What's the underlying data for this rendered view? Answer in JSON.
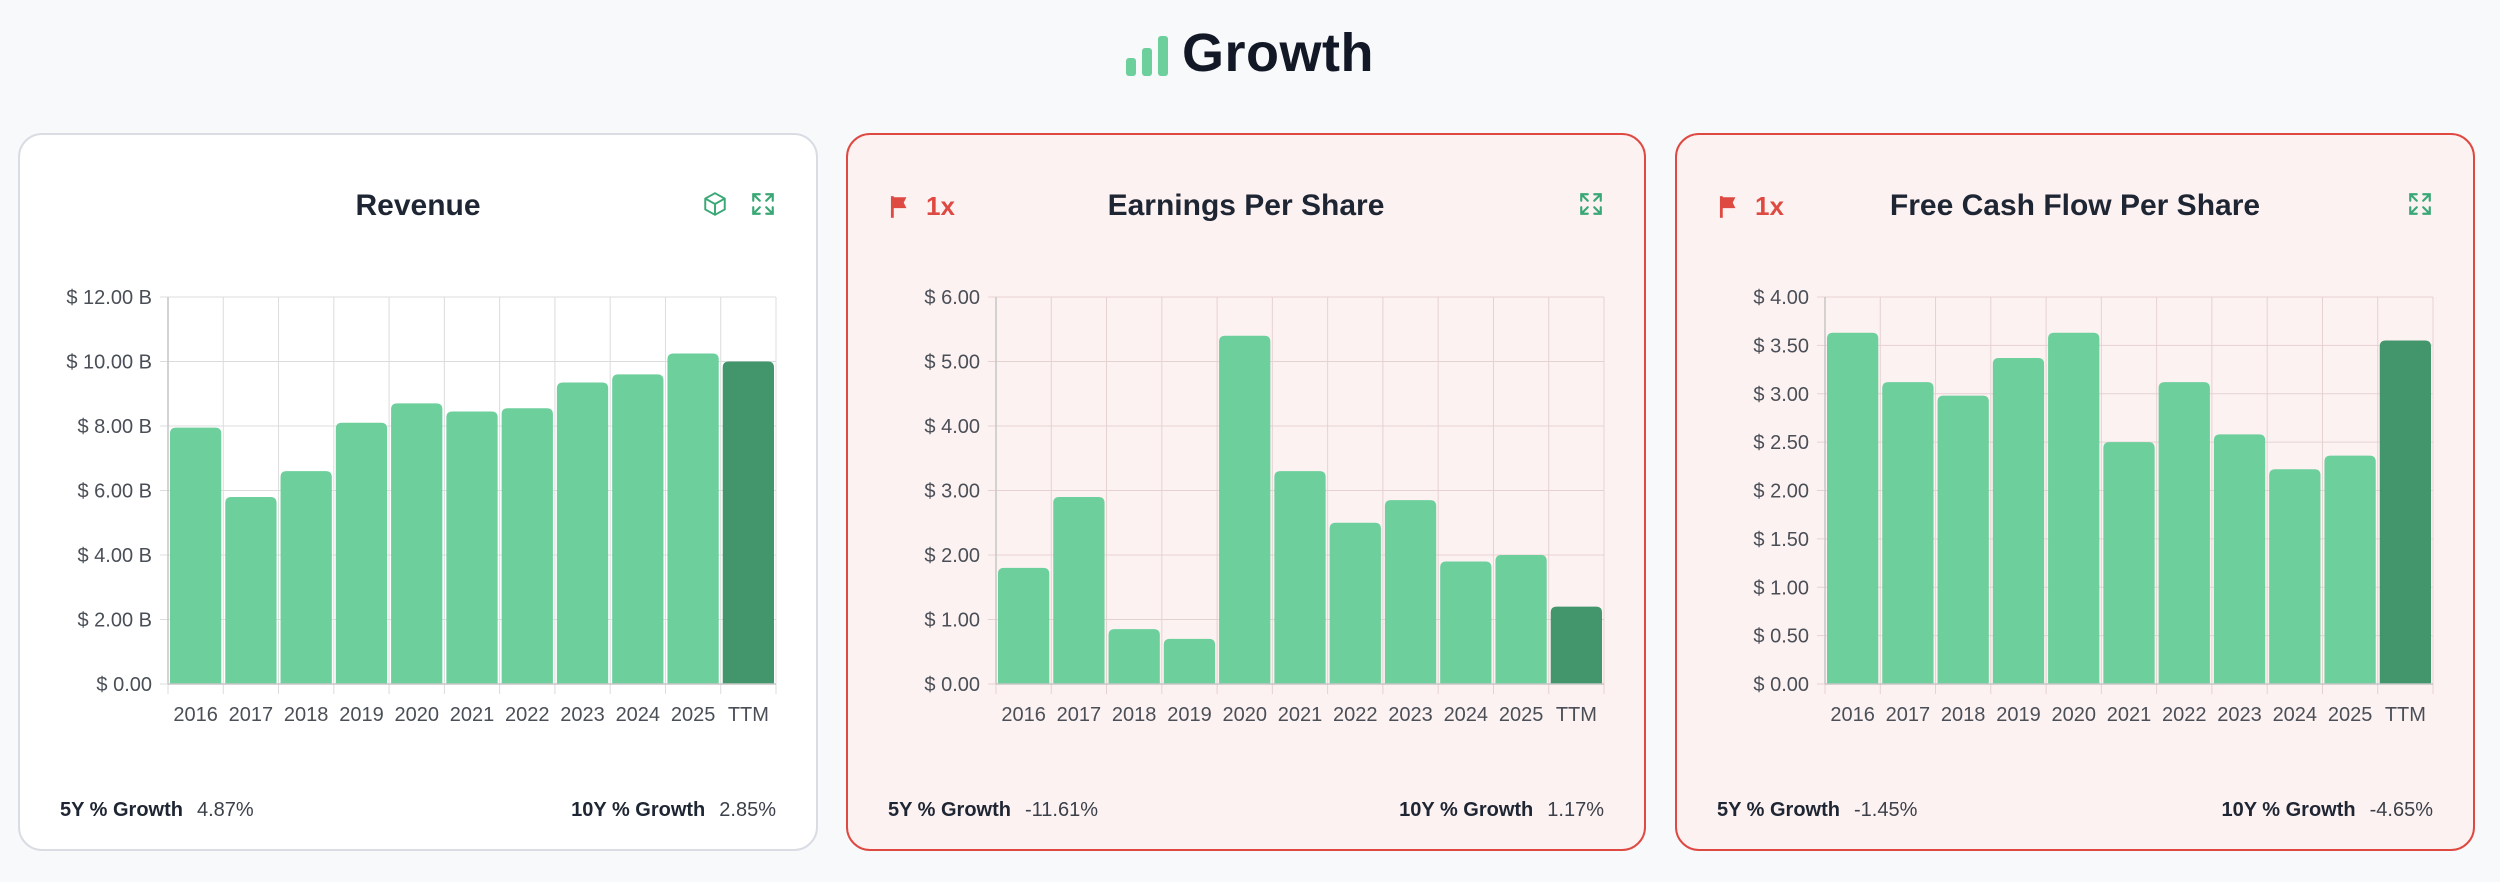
{
  "page": {
    "title": "Growth"
  },
  "colors": {
    "bar": "#6ccf9c",
    "bar_ttm": "#43956b",
    "flag": "#de4a42",
    "icon": "#3aa876"
  },
  "cards": [
    {
      "title": "Revenue",
      "flagged": false,
      "flag_count": "",
      "show_box_icon": true,
      "footer": {
        "g5_label": "5Y % Growth",
        "g5_value": "4.87%",
        "g10_label": "10Y % Growth",
        "g10_value": "2.85%"
      },
      "chart_data": {
        "type": "bar",
        "categories": [
          "2016",
          "2017",
          "2018",
          "2019",
          "2020",
          "2021",
          "2022",
          "2023",
          "2024",
          "2025",
          "TTM"
        ],
        "values": [
          7.95,
          5.8,
          6.6,
          8.1,
          8.7,
          8.45,
          8.55,
          9.35,
          9.6,
          10.25,
          10.0
        ],
        "unit": "$B",
        "ylim": [
          0,
          12
        ],
        "yticks": [
          {
            "value": 0,
            "label": "$ 0.00"
          },
          {
            "value": 2,
            "label": "$ 2.00 B"
          },
          {
            "value": 4,
            "label": "$ 4.00 B"
          },
          {
            "value": 6,
            "label": "$ 6.00 B"
          },
          {
            "value": 8,
            "label": "$ 8.00 B"
          },
          {
            "value": 10,
            "label": "$ 10.00 B"
          },
          {
            "value": 12,
            "label": "$ 12.00 B"
          }
        ],
        "grid": true,
        "highlight_category": "TTM"
      }
    },
    {
      "title": "Earnings Per Share",
      "flagged": true,
      "flag_count": "1x",
      "show_box_icon": false,
      "footer": {
        "g5_label": "5Y % Growth",
        "g5_value": "-11.61%",
        "g10_label": "10Y % Growth",
        "g10_value": "1.17%"
      },
      "chart_data": {
        "type": "bar",
        "categories": [
          "2016",
          "2017",
          "2018",
          "2019",
          "2020",
          "2021",
          "2022",
          "2023",
          "2024",
          "2025",
          "TTM"
        ],
        "values": [
          1.8,
          2.9,
          0.85,
          0.7,
          5.4,
          3.3,
          2.5,
          2.85,
          1.9,
          2.0,
          1.2
        ],
        "unit": "$",
        "ylim": [
          0,
          6
        ],
        "yticks": [
          {
            "value": 0,
            "label": "$ 0.00"
          },
          {
            "value": 1,
            "label": "$ 1.00"
          },
          {
            "value": 2,
            "label": "$ 2.00"
          },
          {
            "value": 3,
            "label": "$ 3.00"
          },
          {
            "value": 4,
            "label": "$ 4.00"
          },
          {
            "value": 5,
            "label": "$ 5.00"
          },
          {
            "value": 6,
            "label": "$ 6.00"
          }
        ],
        "grid": true,
        "highlight_category": "TTM"
      }
    },
    {
      "title": "Free Cash Flow Per Share",
      "flagged": true,
      "flag_count": "1x",
      "show_box_icon": false,
      "footer": {
        "g5_label": "5Y % Growth",
        "g5_value": "-1.45%",
        "g10_label": "10Y % Growth",
        "g10_value": "-4.65%"
      },
      "chart_data": {
        "type": "bar",
        "categories": [
          "2016",
          "2017",
          "2018",
          "2019",
          "2020",
          "2021",
          "2022",
          "2023",
          "2024",
          "2025",
          "TTM"
        ],
        "values": [
          3.63,
          3.12,
          2.98,
          3.37,
          3.63,
          2.5,
          3.12,
          2.58,
          2.22,
          2.36,
          3.55
        ],
        "unit": "$",
        "ylim": [
          0,
          4
        ],
        "yticks": [
          {
            "value": 0,
            "label": "$ 0.00"
          },
          {
            "value": 0.5,
            "label": "$ 0.50"
          },
          {
            "value": 1,
            "label": "$ 1.00"
          },
          {
            "value": 1.5,
            "label": "$ 1.50"
          },
          {
            "value": 2,
            "label": "$ 2.00"
          },
          {
            "value": 2.5,
            "label": "$ 2.50"
          },
          {
            "value": 3,
            "label": "$ 3.00"
          },
          {
            "value": 3.5,
            "label": "$ 3.50"
          },
          {
            "value": 4,
            "label": "$ 4.00"
          }
        ],
        "grid": true,
        "highlight_category": "TTM"
      }
    }
  ]
}
